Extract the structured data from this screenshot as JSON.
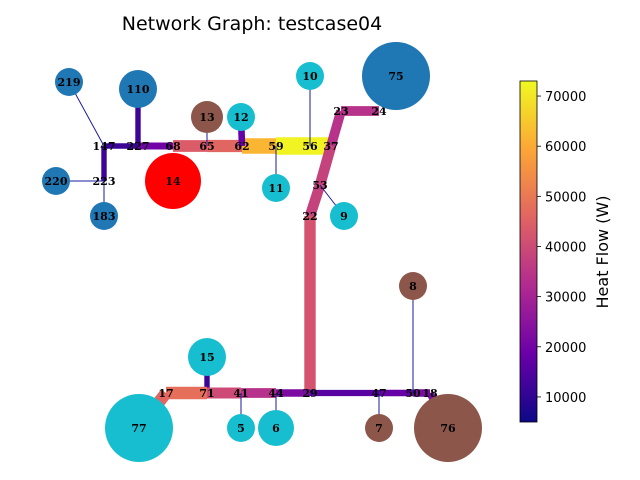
{
  "title": "Network Graph: testcase04",
  "colorbar": {
    "label": "Heat Flow (W)",
    "min": 5000,
    "max": 73000,
    "ticks": [
      "10000",
      "20000",
      "30000",
      "40000",
      "50000",
      "60000",
      "70000"
    ],
    "tick_values": [
      10000,
      20000,
      30000,
      40000,
      50000,
      60000,
      70000
    ],
    "stops": [
      "#0d0887",
      "#6a00a8",
      "#b12a90",
      "#e16462",
      "#fca636",
      "#f0f921"
    ]
  },
  "nodes": [
    {
      "id": "219",
      "label": "219",
      "kind": "consumer",
      "color": "#1f77b4"
    },
    {
      "id": "110",
      "label": "110",
      "kind": "consumer",
      "color": "#1f77b4"
    },
    {
      "id": "147",
      "label": "147",
      "kind": "junction",
      "color": "#ffffff"
    },
    {
      "id": "227",
      "label": "227",
      "kind": "junction",
      "color": "#ffffff"
    },
    {
      "id": "68",
      "label": "68",
      "kind": "junction",
      "color": "#ffffff"
    },
    {
      "id": "65",
      "label": "65",
      "kind": "junction",
      "color": "#ffffff"
    },
    {
      "id": "62",
      "label": "62",
      "kind": "junction",
      "color": "#ffffff"
    },
    {
      "id": "59",
      "label": "59",
      "kind": "junction",
      "color": "#ffffff"
    },
    {
      "id": "56",
      "label": "56",
      "kind": "junction",
      "color": "#ffffff"
    },
    {
      "id": "37",
      "label": "37",
      "kind": "junction",
      "color": "#ffffff"
    },
    {
      "id": "23",
      "label": "23",
      "kind": "junction",
      "color": "#ffffff"
    },
    {
      "id": "24",
      "label": "24",
      "kind": "junction",
      "color": "#ffffff"
    },
    {
      "id": "10",
      "label": "10",
      "kind": "consumer",
      "color": "#17becf"
    },
    {
      "id": "75",
      "label": "75",
      "kind": "consumer",
      "color": "#1f77b4"
    },
    {
      "id": "13",
      "label": "13",
      "kind": "consumer",
      "color": "#8c564b"
    },
    {
      "id": "12",
      "label": "12",
      "kind": "consumer",
      "color": "#17becf"
    },
    {
      "id": "220",
      "label": "220",
      "kind": "consumer",
      "color": "#1f77b4"
    },
    {
      "id": "223",
      "label": "223",
      "kind": "junction",
      "color": "#ffffff"
    },
    {
      "id": "183",
      "label": "183",
      "kind": "consumer",
      "color": "#1f77b4"
    },
    {
      "id": "14",
      "label": "14",
      "kind": "source",
      "color": "#ff0000"
    },
    {
      "id": "11",
      "label": "11",
      "kind": "consumer",
      "color": "#17becf"
    },
    {
      "id": "53",
      "label": "53",
      "kind": "junction",
      "color": "#ffffff"
    },
    {
      "id": "22",
      "label": "22",
      "kind": "junction",
      "color": "#ffffff"
    },
    {
      "id": "9",
      "label": "9",
      "kind": "consumer",
      "color": "#17becf"
    },
    {
      "id": "8",
      "label": "8",
      "kind": "consumer",
      "color": "#8c564b"
    },
    {
      "id": "15",
      "label": "15",
      "kind": "consumer",
      "color": "#17becf"
    },
    {
      "id": "17",
      "label": "17",
      "kind": "junction",
      "color": "#ffffff"
    },
    {
      "id": "71",
      "label": "71",
      "kind": "junction",
      "color": "#ffffff"
    },
    {
      "id": "41",
      "label": "41",
      "kind": "junction",
      "color": "#ffffff"
    },
    {
      "id": "44",
      "label": "44",
      "kind": "junction",
      "color": "#ffffff"
    },
    {
      "id": "29",
      "label": "29",
      "kind": "junction",
      "color": "#ffffff"
    },
    {
      "id": "47",
      "label": "47",
      "kind": "junction",
      "color": "#ffffff"
    },
    {
      "id": "50",
      "label": "50",
      "kind": "junction",
      "color": "#ffffff"
    },
    {
      "id": "18",
      "label": "18",
      "kind": "junction",
      "color": "#ffffff"
    },
    {
      "id": "77",
      "label": "77",
      "kind": "consumer",
      "color": "#17becf"
    },
    {
      "id": "5",
      "label": "5",
      "kind": "consumer",
      "color": "#17becf"
    },
    {
      "id": "6",
      "label": "6",
      "kind": "consumer",
      "color": "#17becf"
    },
    {
      "id": "7",
      "label": "7",
      "kind": "consumer",
      "color": "#8c564b"
    },
    {
      "id": "76",
      "label": "76",
      "kind": "consumer",
      "color": "#8c564b"
    }
  ],
  "edges": [
    {
      "from": "219",
      "to": "147",
      "flow": 0
    },
    {
      "from": "147",
      "to": "227",
      "flow": 12000
    },
    {
      "from": "110",
      "to": "227",
      "flow": 12000
    },
    {
      "from": "227",
      "to": "68",
      "flow": 20000
    },
    {
      "from": "68",
      "to": "65",
      "flow": 44000
    },
    {
      "from": "65",
      "to": "62",
      "flow": 46000
    },
    {
      "from": "62",
      "to": "59",
      "flow": 62000
    },
    {
      "from": "59",
      "to": "56",
      "flow": 72000
    },
    {
      "from": "56",
      "to": "37",
      "flow": 72000
    },
    {
      "from": "37",
      "to": "23",
      "flow": 34000
    },
    {
      "from": "23",
      "to": "24",
      "flow": 34000
    },
    {
      "from": "10",
      "to": "56",
      "flow": 0
    },
    {
      "from": "13",
      "to": "65",
      "flow": 0
    },
    {
      "from": "12",
      "to": "62",
      "flow": 18000
    },
    {
      "from": "11",
      "to": "59",
      "flow": 0
    },
    {
      "from": "147",
      "to": "223",
      "flow": 12000
    },
    {
      "from": "220",
      "to": "223",
      "flow": 0
    },
    {
      "from": "223",
      "to": "183",
      "flow": 0
    },
    {
      "from": "37",
      "to": "53",
      "flow": 38000
    },
    {
      "from": "53",
      "to": "22",
      "flow": 38000
    },
    {
      "from": "53",
      "to": "9",
      "flow": 0
    },
    {
      "from": "22",
      "to": "29",
      "flow": 42000
    },
    {
      "from": "15",
      "to": "71",
      "flow": 12000
    },
    {
      "from": "17",
      "to": "71",
      "flow": 48000
    },
    {
      "from": "71",
      "to": "41",
      "flow": 40000
    },
    {
      "from": "41",
      "to": "44",
      "flow": 34000
    },
    {
      "from": "44",
      "to": "29",
      "flow": 22000
    },
    {
      "from": "29",
      "to": "47",
      "flow": 16000
    },
    {
      "from": "47",
      "to": "50",
      "flow": 18000
    },
    {
      "from": "50",
      "to": "18",
      "flow": 22000
    },
    {
      "from": "8",
      "to": "50",
      "flow": 0
    },
    {
      "from": "41",
      "to": "5",
      "flow": 0
    },
    {
      "from": "44",
      "to": "6",
      "flow": 0
    },
    {
      "from": "47",
      "to": "7",
      "flow": 0
    },
    {
      "from": "17",
      "to": "77",
      "flow": 46000
    },
    {
      "from": "18",
      "to": "76",
      "flow": 22000
    }
  ]
}
